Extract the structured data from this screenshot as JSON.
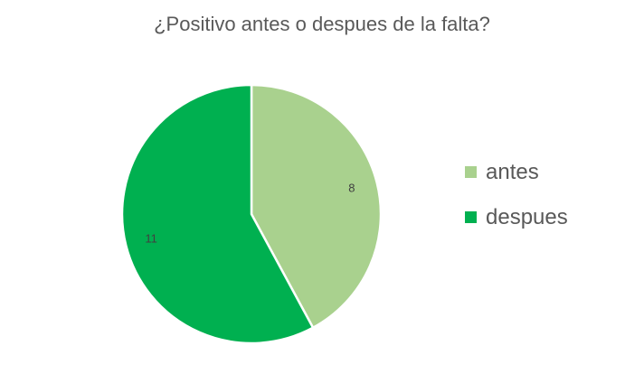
{
  "chart_data": {
    "type": "pie",
    "title": "¿Positivo antes o despues de la falta?",
    "categories": [
      "antes",
      "despues"
    ],
    "values": [
      8,
      11
    ],
    "data_labels": [
      "8",
      "11"
    ],
    "colors": [
      "#A9D18E",
      "#00B050"
    ],
    "legend_position": "right"
  }
}
